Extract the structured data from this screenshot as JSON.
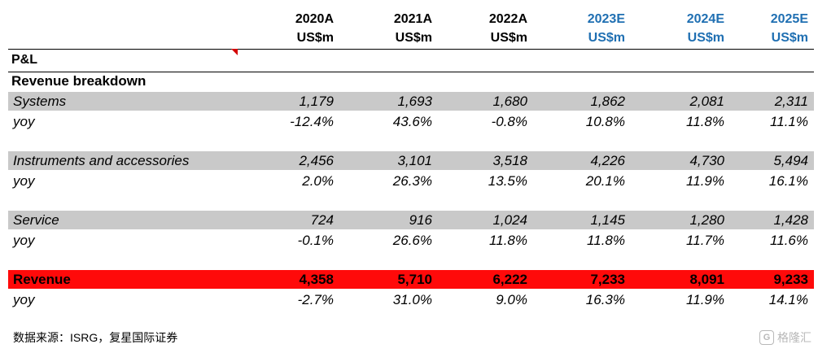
{
  "header": {
    "columns": [
      {
        "year": "2020A",
        "unit": "US$m",
        "estimate": false
      },
      {
        "year": "2021A",
        "unit": "US$m",
        "estimate": false
      },
      {
        "year": "2022A",
        "unit": "US$m",
        "estimate": false
      },
      {
        "year": "2023E",
        "unit": "US$m",
        "estimate": true
      },
      {
        "year": "2024E",
        "unit": "US$m",
        "estimate": true
      },
      {
        "year": "2025E",
        "unit": "US$m",
        "estimate": true
      }
    ]
  },
  "table": {
    "title": "P&L",
    "section": "Revenue breakdown",
    "rows": [
      {
        "label": "Systems",
        "values": [
          "1,179",
          "1,693",
          "1,680",
          "1,862",
          "2,081",
          "2,311"
        ]
      },
      {
        "label": "yoy",
        "values": [
          "-12.4%",
          "43.6%",
          "-0.8%",
          "10.8%",
          "11.8%",
          "11.1%"
        ]
      },
      {
        "label": "Instruments and accessories",
        "values": [
          "2,456",
          "3,101",
          "3,518",
          "4,226",
          "4,730",
          "5,494"
        ]
      },
      {
        "label": "yoy",
        "values": [
          "2.0%",
          "26.3%",
          "13.5%",
          "20.1%",
          "11.9%",
          "16.1%"
        ]
      },
      {
        "label": "Service",
        "values": [
          "724",
          "916",
          "1,024",
          "1,145",
          "1,280",
          "1,428"
        ]
      },
      {
        "label": "yoy",
        "values": [
          "-0.1%",
          "26.6%",
          "11.8%",
          "11.8%",
          "11.7%",
          "11.6%"
        ]
      },
      {
        "label": "Revenue",
        "values": [
          "4,358",
          "5,710",
          "6,222",
          "7,233",
          "8,091",
          "9,233"
        ]
      },
      {
        "label": "yoy",
        "values": [
          "-2.7%",
          "31.0%",
          "9.0%",
          "16.3%",
          "11.9%",
          "14.1%"
        ]
      }
    ]
  },
  "source": "数据来源：ISRG，复星国际证券",
  "watermark": "格隆汇",
  "colors": {
    "estimate_header": "#1f6fb2",
    "grey_row": "#c9c9c9",
    "revenue_row": "#ff0a0a"
  }
}
